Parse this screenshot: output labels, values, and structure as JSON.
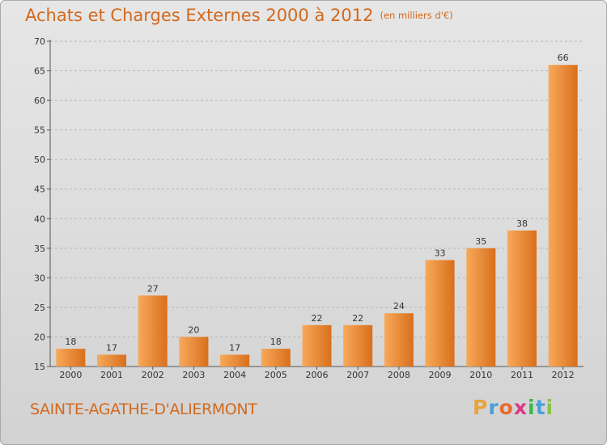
{
  "header": {
    "title": "Achats et Charges Externes 2000 à 2012",
    "unit": "(en milliers d'€)"
  },
  "footer": {
    "commune": "SAINTE-AGATHE-D'ALIERMONT",
    "logo": {
      "letters": [
        "P",
        "r",
        "o",
        "x",
        "i",
        "t",
        "i"
      ],
      "colors": [
        "#e8a33d",
        "#4a9fd8",
        "#e86a2e",
        "#d93a8a",
        "#3db54a",
        "#4a9fd8",
        "#8bc34a"
      ]
    }
  },
  "colors": {
    "accent": "#d2691e",
    "bar_light": "#f7a95a",
    "bar_dark": "#d96f1c"
  },
  "chart_data": {
    "type": "bar",
    "title": "Achats et Charges Externes 2000 à 2012",
    "subtitle": "(en milliers d'€)",
    "xlabel": "",
    "ylabel": "",
    "categories": [
      "2000",
      "2001",
      "2002",
      "2003",
      "2004",
      "2005",
      "2006",
      "2007",
      "2008",
      "2009",
      "2010",
      "2011",
      "2012"
    ],
    "values": [
      18,
      17,
      27,
      20,
      17,
      18,
      22,
      22,
      24,
      33,
      35,
      38,
      66
    ],
    "data_labels": [
      "18",
      "17",
      "27",
      "20",
      "17",
      "18",
      "22",
      "22",
      "24",
      "33",
      "35",
      "38",
      "66"
    ],
    "ylim": [
      15,
      70
    ],
    "yticks": [
      15,
      20,
      25,
      30,
      35,
      40,
      45,
      50,
      55,
      60,
      65,
      70
    ],
    "grid": "horizontal dashed",
    "legend": "none"
  }
}
